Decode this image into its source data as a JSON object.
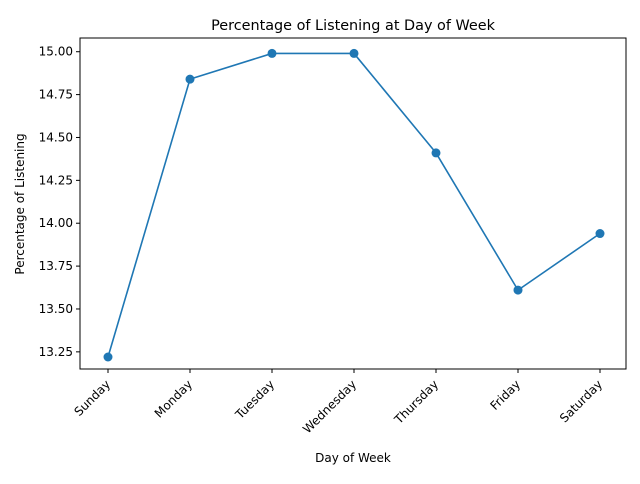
{
  "chart_data": {
    "type": "line",
    "title": "Percentage of Listening at Day of Week",
    "xlabel": "Day of Week",
    "ylabel": "Percentage of Listening",
    "categories": [
      "Sunday",
      "Monday",
      "Tuesday",
      "Wednesday",
      "Thursday",
      "Friday",
      "Saturday"
    ],
    "series": [
      {
        "values": [
          13.22,
          14.84,
          14.99,
          14.99,
          14.41,
          13.61,
          13.94
        ],
        "color": "#1f77b4",
        "marker": "circle"
      }
    ],
    "yticks": [
      "13.25",
      "13.50",
      "13.75",
      "14.00",
      "14.25",
      "14.50",
      "14.75",
      "15.00"
    ],
    "ylim": [
      13.15,
      15.08
    ],
    "grid": false,
    "legend": "none",
    "xtick_rotation": 45
  }
}
